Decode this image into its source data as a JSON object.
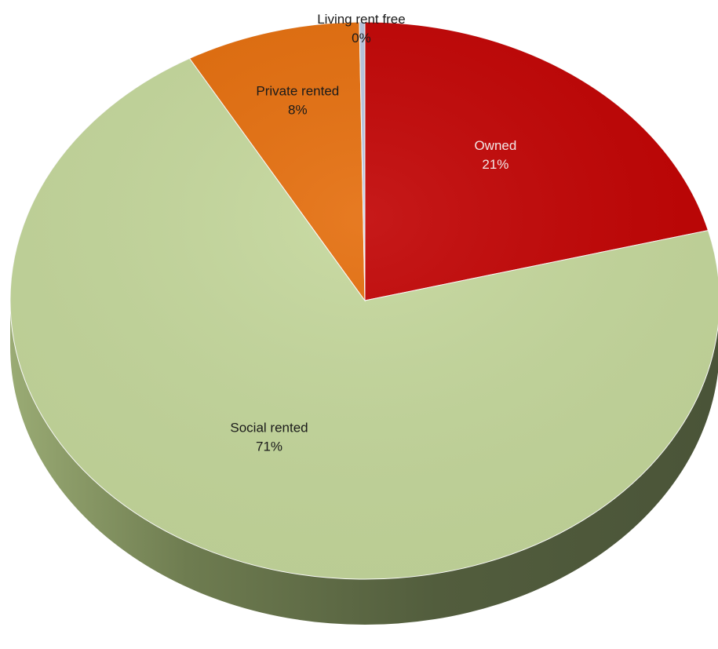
{
  "chart_data": {
    "type": "pie",
    "title": "",
    "style": "3d",
    "slices": [
      {
        "label": "Owned",
        "value": 21,
        "display": "21%",
        "color": "#c00000"
      },
      {
        "label": "Social rented",
        "value": 71,
        "display": "71%",
        "color": "#c4d79b"
      },
      {
        "label": "Private rented",
        "value": 8,
        "display": "8%",
        "color": "#e46c0a"
      },
      {
        "label": "Living rent free",
        "value": 0.25,
        "display": "0%",
        "color": "#b7c4de"
      }
    ],
    "colors": {
      "side_dark": "#4f5a3c",
      "side_light": "#8e9f6a"
    }
  }
}
